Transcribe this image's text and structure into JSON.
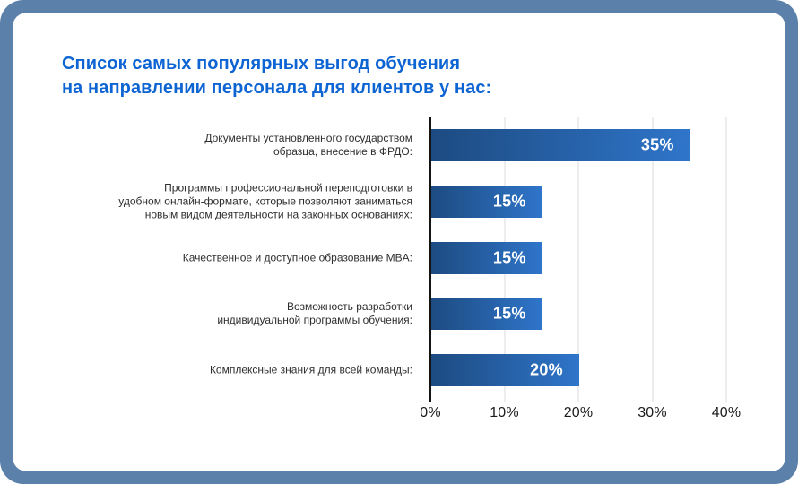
{
  "frame": {
    "outer_color": "#5b80a9",
    "card_color": "#ffffff"
  },
  "title": {
    "lines": [
      "Список самых популярных выгод обучения",
      "на направлении персонала для клиентов у нас:"
    ],
    "color": "#0d64d3"
  },
  "chart_data": {
    "type": "bar",
    "orientation": "horizontal",
    "title": "Список самых популярных выгод обучения на направлении персонала для клиентов у нас:",
    "categories": [
      "Документы установленного государством образца, внесение в ФРДО:",
      "Программы профессиональной переподготовки в удобном онлайн-формате, которые позволяют заниматься новым видом деятельности на законных основаниях:",
      "Качественное и доступное образование MBA:",
      "Возможность разработки индивидуальной программы обучения:",
      "Комплексные знания для всей команды:"
    ],
    "category_lines": [
      [
        "Документы установленного государством",
        "образца, внесение в ФРДО:"
      ],
      [
        "Программы профессиональной переподготовки в",
        "удобном онлайн-формате, которые позволяют заниматься",
        "новым видом деятельности на законных основаниях:"
      ],
      [
        "Качественное и доступное образование MBA:"
      ],
      [
        "Возможность разработки",
        "индивидуальной программы обучения:"
      ],
      [
        "Комплексные знания для всей команды:"
      ]
    ],
    "values": [
      35,
      15,
      15,
      15,
      20
    ],
    "value_labels": [
      "35%",
      "15%",
      "15%",
      "15%",
      "20%"
    ],
    "x_ticks": [
      "0%",
      "10%",
      "20%",
      "30%",
      "40%"
    ],
    "xlim": [
      0,
      40
    ],
    "xlabel": "",
    "ylabel": "",
    "grid": true,
    "legend": false,
    "bar_gradient_start": "#1d4b81",
    "bar_gradient_end": "#2f75ca",
    "value_label_color": "#ffffff",
    "axis_color": "#141414",
    "gridline_color": "#ededed",
    "label_color": "#2e2e2e"
  }
}
